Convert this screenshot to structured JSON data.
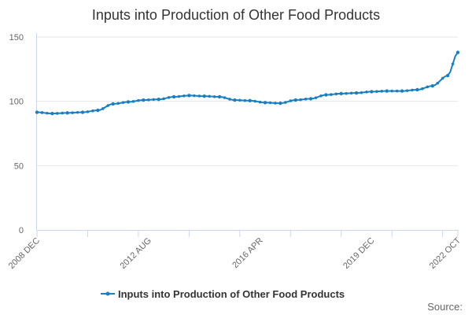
{
  "chart_data": {
    "type": "line",
    "title": "Inputs into Production of Other Food Products",
    "xlabel": "",
    "ylabel": "",
    "ylim": [
      0,
      150
    ],
    "yticks": [
      0,
      50,
      100,
      150
    ],
    "x_tick_labels": [
      "2008 DEC",
      "2012 AUG",
      "2016 APR",
      "2019 DEC",
      "2022 OCT"
    ],
    "x_range": [
      "2008 DEC",
      "2022 OCT"
    ],
    "grid": true,
    "legend_position": "bottom",
    "series": [
      {
        "name": "Inputs into Production of Other Food Products",
        "color": "#1a7fc0",
        "x": [
          "2008 DEC",
          "2009 JUN",
          "2009 DEC",
          "2010 JUN",
          "2010 DEC",
          "2011 JUN",
          "2011 DEC",
          "2012 JUN",
          "2012 DEC",
          "2013 JUN",
          "2013 DEC",
          "2014 JUN",
          "2014 DEC",
          "2015 JUN",
          "2015 DEC",
          "2016 JUN",
          "2016 DEC",
          "2017 JUN",
          "2017 DEC",
          "2018 JUN",
          "2018 DEC",
          "2019 JUN",
          "2019 DEC",
          "2020 JUN",
          "2020 DEC",
          "2021 JUN",
          "2021 DEC",
          "2022 JUN",
          "2022 OCT"
        ],
        "values": [
          91.5,
          90.5,
          91,
          91.5,
          93,
          98,
          99.5,
          101,
          101.5,
          103.5,
          104.5,
          104,
          103.5,
          101,
          100.5,
          99,
          98.5,
          101,
          102,
          105,
          106,
          106.5,
          107.5,
          108,
          108,
          109,
          112,
          120,
          138
        ]
      }
    ],
    "source": "Source:"
  }
}
